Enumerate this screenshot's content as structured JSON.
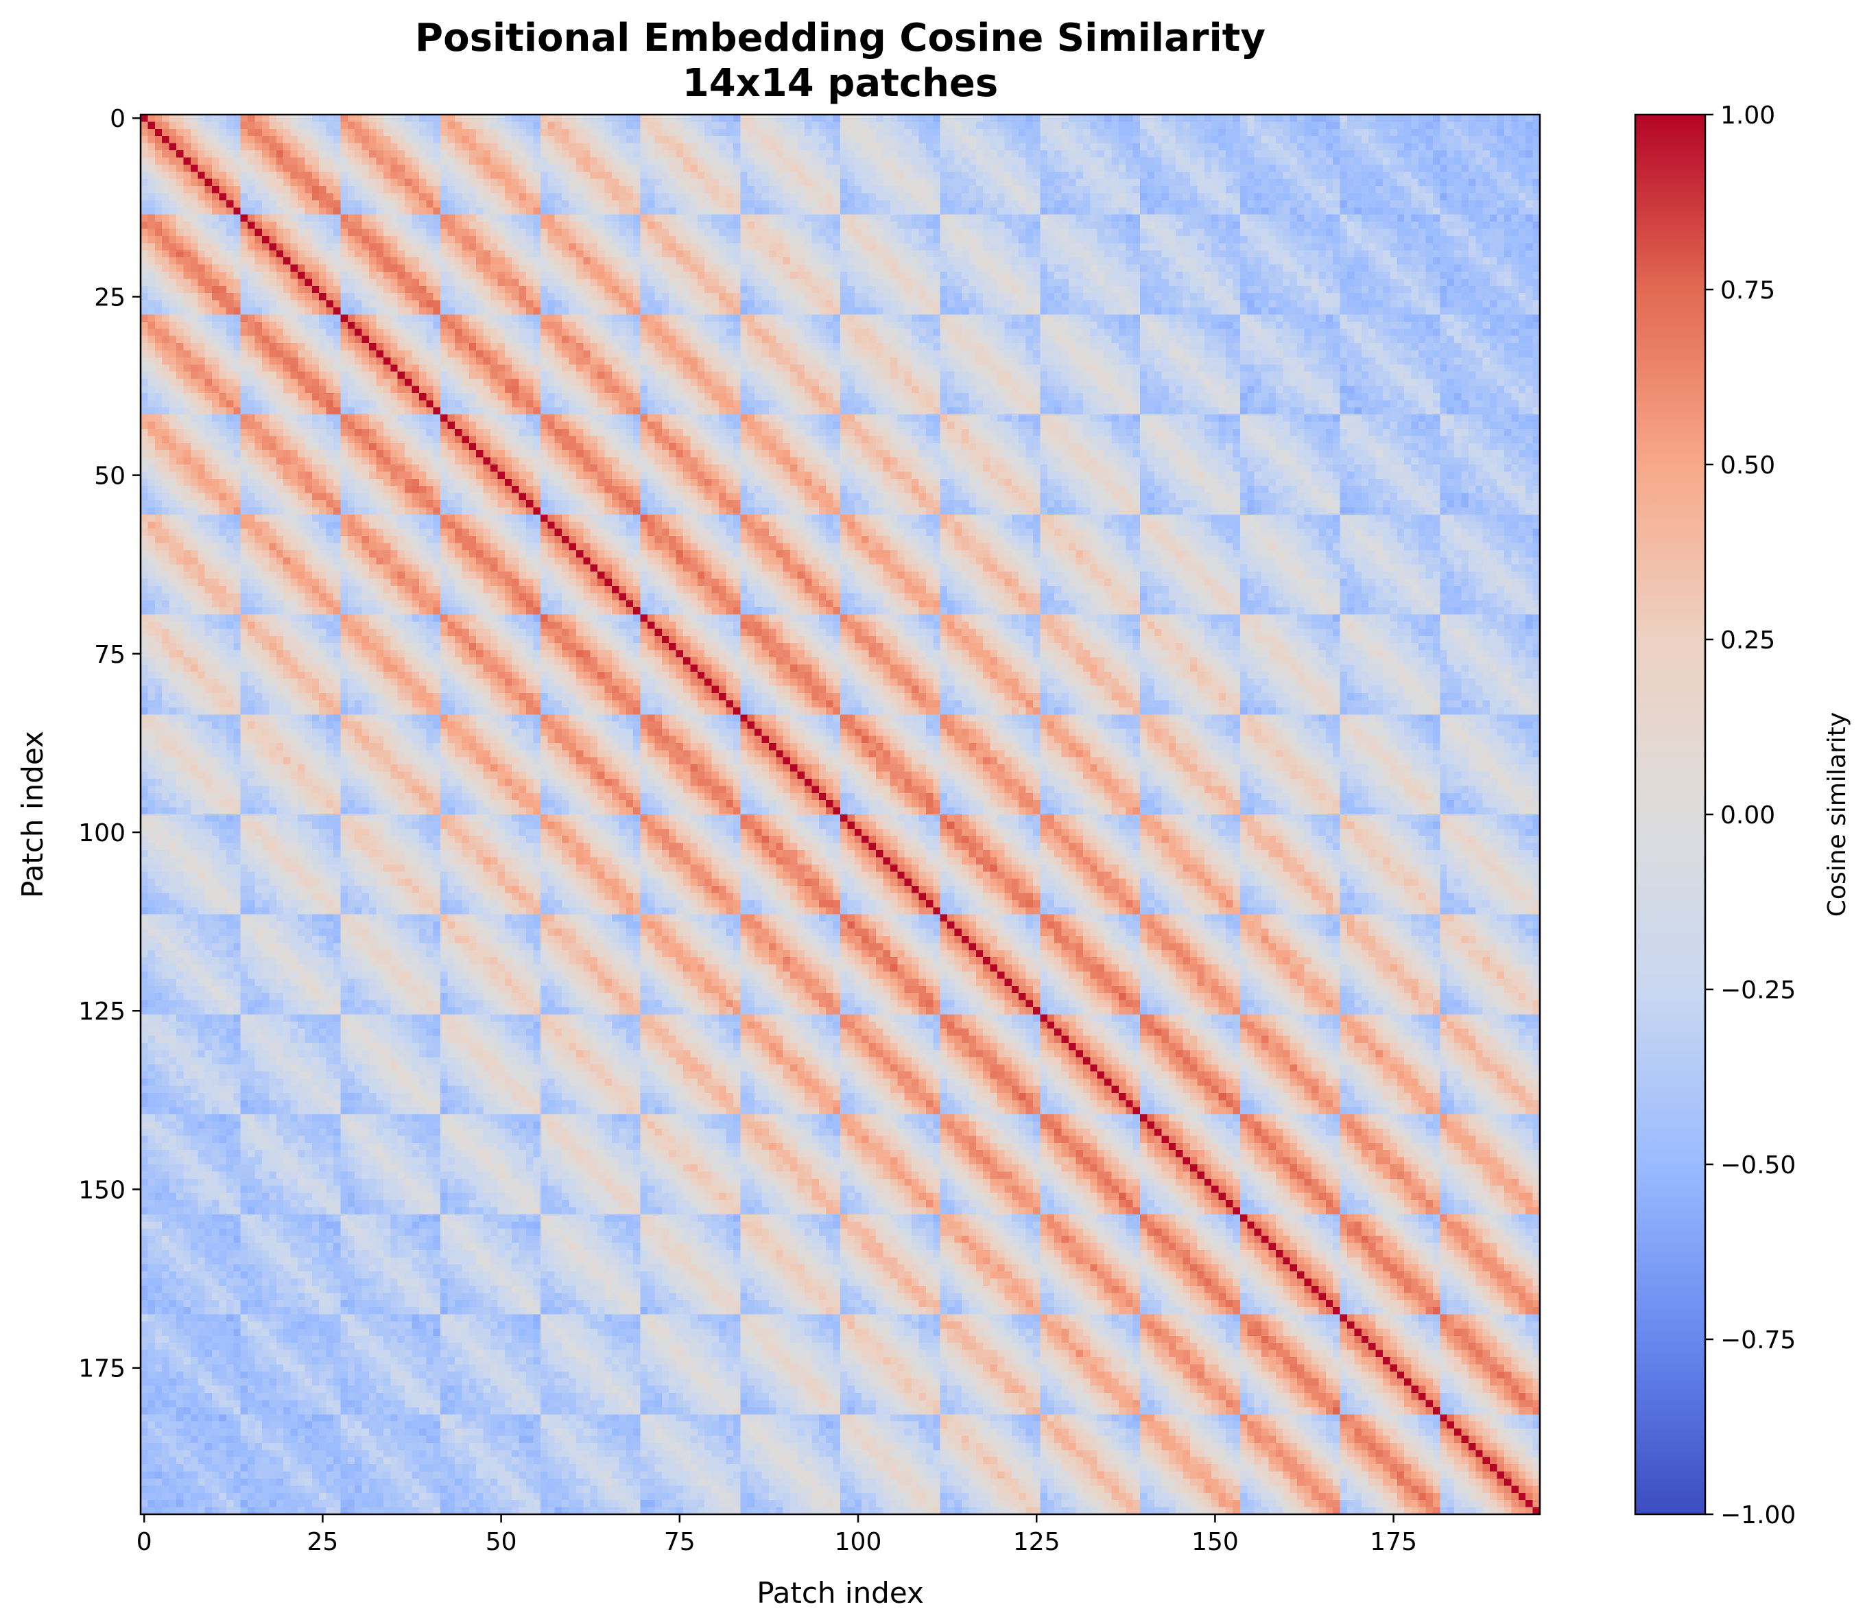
{
  "chart_data": {
    "type": "heatmap",
    "title": "Positional Embedding Cosine Similarity",
    "subtitle": "14x14 patches",
    "xlabel": "Patch index",
    "ylabel": "Patch index",
    "grid_size": 14,
    "n_patches": 196,
    "xlim": [
      -0.5,
      195.5
    ],
    "ylim": [
      195.5,
      -0.5
    ],
    "x_ticks": [
      0,
      25,
      50,
      75,
      100,
      125,
      150,
      175
    ],
    "x_tick_labels": [
      "0",
      "25",
      "50",
      "75",
      "100",
      "125",
      "150",
      "175"
    ],
    "y_ticks": [
      0,
      25,
      50,
      75,
      100,
      125,
      150,
      175
    ],
    "y_tick_labels": [
      "0",
      "25",
      "50",
      "75",
      "100",
      "125",
      "150",
      "175"
    ],
    "diagonal_value": 1.0,
    "colormap": "coolwarm",
    "colormap_stops": [
      "#3b4cc0",
      "#6788ee",
      "#9abbff",
      "#c9d7f0",
      "#dddcdc",
      "#edd1c2",
      "#f7a889",
      "#e26952",
      "#b40426"
    ],
    "grid": false,
    "colorbar": {
      "label": "Cosine similarity",
      "vmin": -1.0,
      "vmax": 1.0,
      "ticks": [
        1.0,
        0.75,
        0.5,
        0.25,
        0.0,
        -0.25,
        -0.5,
        -0.75,
        -1.0
      ],
      "tick_labels": [
        "1.00",
        "0.75",
        "0.50",
        "0.25",
        "0.00",
        "−0.25",
        "−0.50",
        "−0.75",
        "−1.00"
      ]
    }
  }
}
